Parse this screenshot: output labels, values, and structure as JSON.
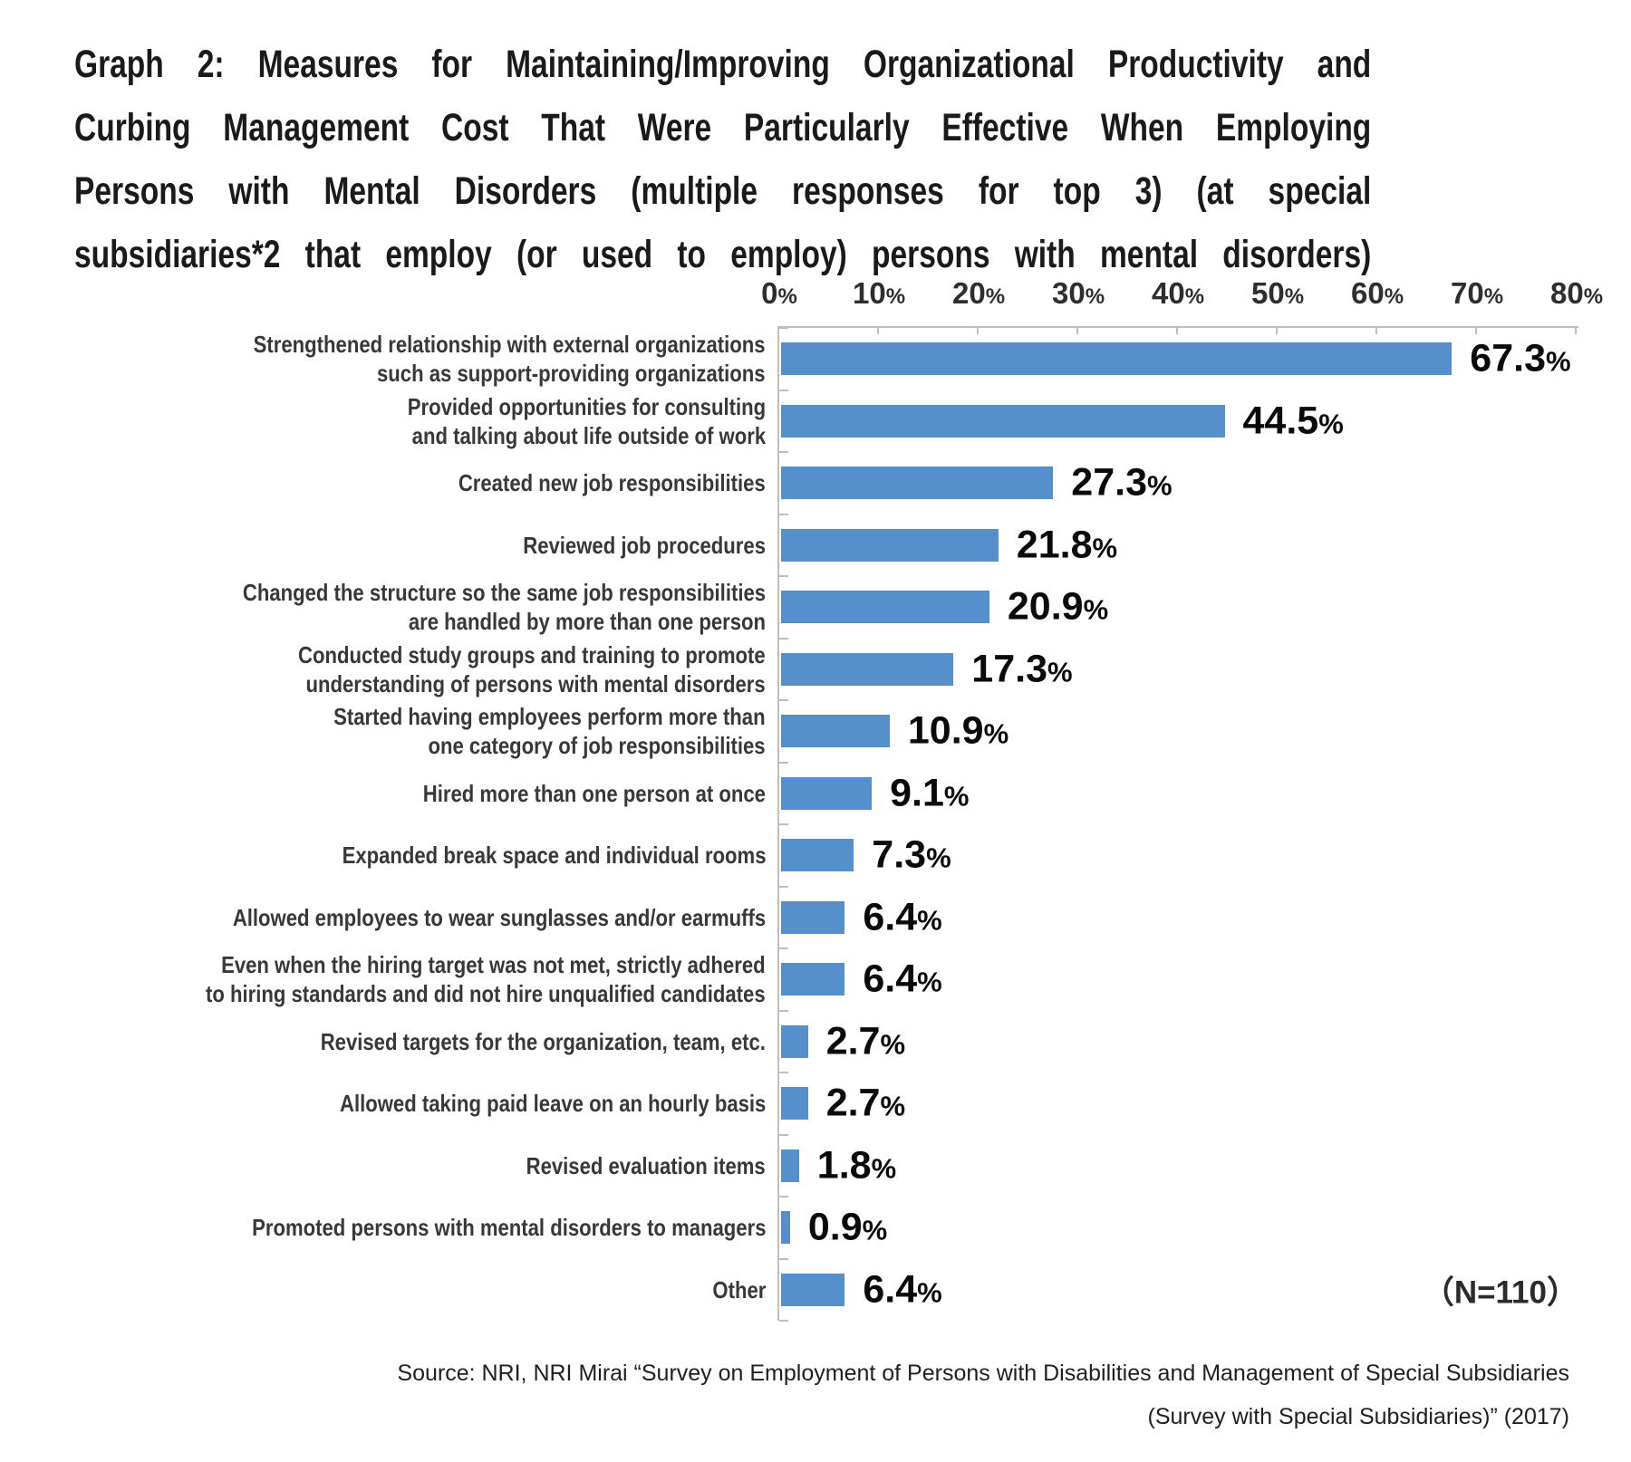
{
  "title": {
    "lines": [
      "Graph 2: Measures for Maintaining/Improving Organizational Productivity and",
      "Curbing Management Cost That Were Particularly Effective When Employing",
      "Persons with Mental Disorders (multiple responses for top 3) (at special",
      "subsidiaries*2 that employ (or used to employ) persons with mental disorders)"
    ]
  },
  "chart_data": {
    "type": "bar",
    "orientation": "horizontal",
    "title": "Graph 2: Measures for Maintaining/Improving Organizational Productivity and Curbing Management Cost That Were Particularly Effective When Employing Persons with Mental Disorders (multiple responses for top 3) (at special subsidiaries*2 that employ (or used to employ) persons with mental disorders)",
    "xlim": [
      0,
      80
    ],
    "x_tick_labels": [
      "0%",
      "10%",
      "20%",
      "30%",
      "40%",
      "50%",
      "60%",
      "70%",
      "80%"
    ],
    "grid": false,
    "bar_color": "#5590cc",
    "axis_color": "#bfbfbf",
    "n_label": "（N=110）",
    "categories": [
      [
        "Strengthened relationship with external organizations",
        "such as support-providing organizations"
      ],
      [
        "Provided opportunities for consulting",
        "and talking about life outside of work"
      ],
      [
        "Created new job responsibilities"
      ],
      [
        "Reviewed job procedures"
      ],
      [
        "Changed the structure so the same job responsibilities",
        "are handled by more than one person"
      ],
      [
        "Conducted study groups and training to promote",
        "understanding of persons with mental disorders"
      ],
      [
        "Started having employees perform more than",
        "one category of job responsibilities"
      ],
      [
        "Hired more than one person at once"
      ],
      [
        "Expanded break space and individual rooms"
      ],
      [
        "Allowed employees to wear sunglasses and/or earmuffs"
      ],
      [
        "Even when the hiring target was not met, strictly adhered",
        "to hiring standards and did not hire unqualified candidates"
      ],
      [
        "Revised targets for the organization, team, etc."
      ],
      [
        "Allowed taking paid leave on an hourly basis"
      ],
      [
        "Revised evaluation items"
      ],
      [
        "Promoted persons with mental disorders to managers"
      ],
      [
        "Other"
      ]
    ],
    "values": [
      67.3,
      44.5,
      27.3,
      21.8,
      20.9,
      17.3,
      10.9,
      9.1,
      7.3,
      6.4,
      6.4,
      2.7,
      2.7,
      1.8,
      0.9,
      6.4
    ],
    "value_labels": [
      "67.3%",
      "44.5%",
      "27.3%",
      "21.8%",
      "20.9%",
      "17.3%",
      "10.9%",
      "9.1%",
      "7.3%",
      "6.4%",
      "6.4%",
      "2.7%",
      "2.7%",
      "1.8%",
      "0.9%",
      "6.4%"
    ]
  },
  "source": {
    "lines": [
      "Source: NRI, NRI Mirai “Survey on Employment of Persons with Disabilities and Management of Special Subsidiaries",
      "(Survey with Special Subsidiaries)” (2017)"
    ]
  }
}
